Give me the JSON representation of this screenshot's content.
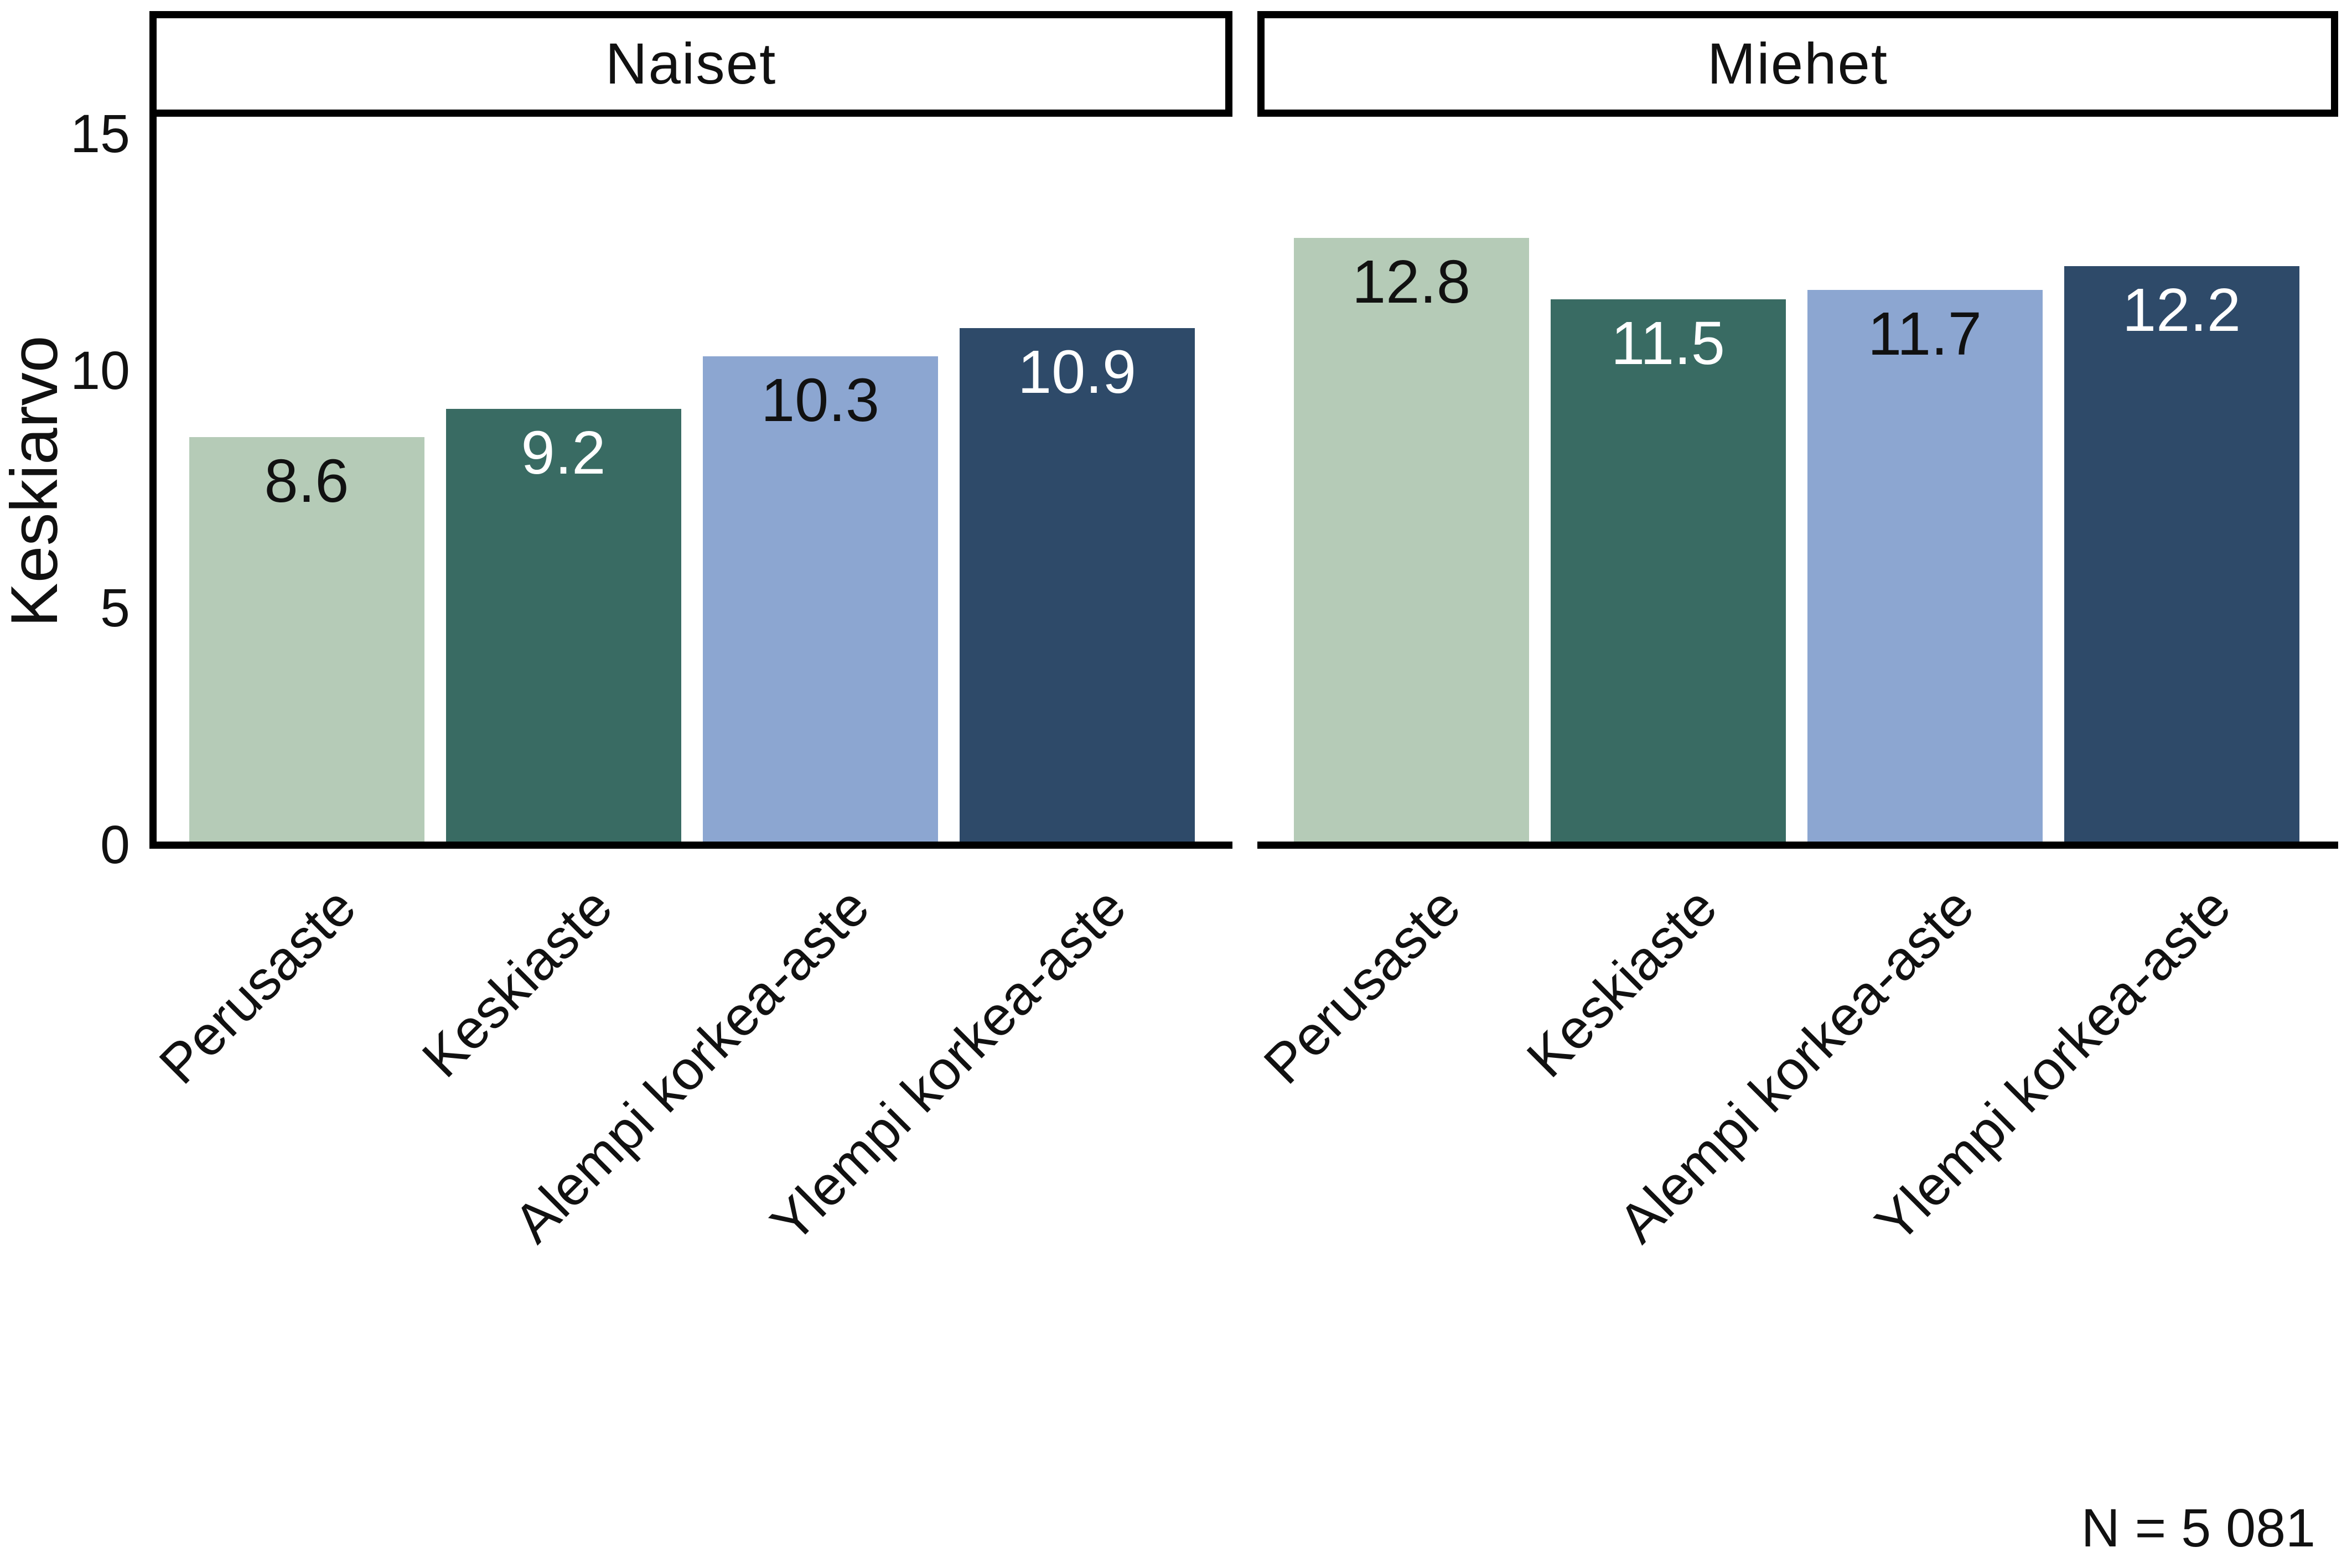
{
  "chart_data": {
    "type": "bar",
    "faceted": true,
    "facets": [
      {
        "title": "Naiset",
        "values": [
          8.6,
          9.2,
          10.3,
          10.9
        ],
        "labels": [
          "8.6",
          "9.2",
          "10.3",
          "10.9"
        ]
      },
      {
        "title": "Miehet",
        "values": [
          12.8,
          11.5,
          11.7,
          12.2
        ],
        "labels": [
          "12.8",
          "11.5",
          "11.7",
          "12.2"
        ]
      }
    ],
    "categories": [
      "Perusaste",
      "Keskiaste",
      "Alempi korkea-aste",
      "Ylempi korkea-aste"
    ],
    "ylabel": "Keskiarvo",
    "yticks": [
      0,
      5,
      10,
      15
    ],
    "ylim": [
      0,
      15.4
    ],
    "grid": false,
    "legend": "none",
    "caption": "N = 5 081",
    "bar_colors": [
      "#b5cbb7",
      "#396b63",
      "#8ca6d1",
      "#2e4a69"
    ],
    "value_label_colors": [
      "#111111",
      "#ffffff",
      "#111111",
      "#ffffff"
    ],
    "axis_color": "#000000",
    "text_color": "#111111",
    "background_color": "#ffffff"
  }
}
